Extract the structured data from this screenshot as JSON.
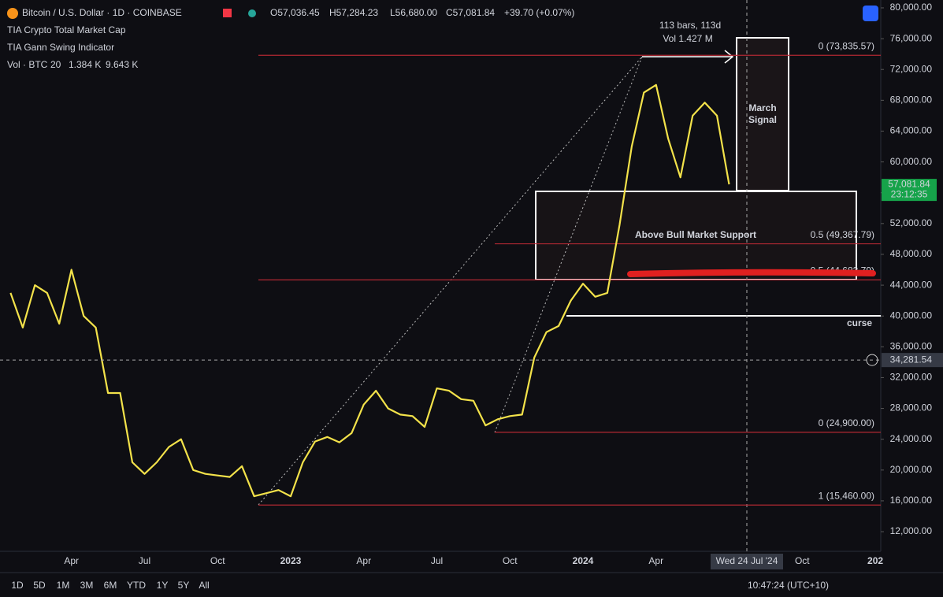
{
  "chart_data": {
    "type": "line",
    "title": "Bitcoin / U.S. Dollar · 1D · COINBASE",
    "ohlc": [
      "O57,036.45",
      "H57,284.23",
      "L56,680.00",
      "C57,081.84",
      "+39.70 (+0.07%)"
    ],
    "indicators": [
      "TIA Crypto Total Market Cap",
      "TIA Gann Swing Indicator"
    ],
    "volume_legend": [
      "Vol · BTC",
      "20",
      "1.384 K",
      "9.643 K"
    ],
    "categories": [
      null,
      null,
      null,
      null,
      null,
      "Apr",
      null,
      null,
      null,
      null,
      null,
      "Jul",
      null,
      null,
      null,
      null,
      null,
      "Oct",
      null,
      null,
      null,
      null,
      null,
      "2023",
      null,
      null,
      null,
      null,
      null,
      "Apr",
      null,
      null,
      null,
      null,
      null,
      "Jul",
      null,
      null,
      null,
      null,
      null,
      "Oct",
      null,
      null,
      null,
      null,
      null,
      "2024",
      null,
      null,
      null,
      null,
      null,
      "Apr",
      null,
      null,
      null,
      null,
      null,
      null,
      null,
      null,
      null,
      null,
      null,
      "Oct",
      null,
      null,
      null,
      null,
      null,
      "202"
    ],
    "values": [
      43000,
      38500,
      44000,
      43000,
      39000,
      46000,
      40000,
      38500,
      30000,
      30000,
      21000,
      19500,
      21000,
      23000,
      24000,
      20000,
      19500,
      19300,
      19100,
      20500,
      16600,
      17000,
      17400,
      16600,
      21000,
      23700,
      24300,
      23600,
      24800,
      28500,
      30300,
      28000,
      27200,
      27000,
      25600,
      30600,
      30300,
      29200,
      29000,
      25800,
      26600,
      27000,
      27200,
      34600,
      37900,
      38700,
      42000,
      44200,
      42500,
      43000,
      51800,
      62000,
      69000,
      70000,
      63000,
      58000,
      66000,
      67700,
      66000,
      57081.84,
      null,
      null,
      null,
      null,
      null,
      null,
      null,
      null,
      null,
      null,
      null,
      null
    ],
    "color": "#f3e24a",
    "ylim": [
      9450,
      81020
    ],
    "yticks": [
      {
        "value": 12000,
        "label": "12,000.00"
      },
      {
        "value": 16000,
        "label": "16,000.00"
      },
      {
        "value": 20000,
        "label": "20,000.00"
      },
      {
        "value": 24000,
        "label": "24,000.00"
      },
      {
        "value": 28000,
        "label": "28,000.00"
      },
      {
        "value": 32000,
        "label": "32,000.00"
      },
      {
        "value": 36000,
        "label": "36,000.00"
      },
      {
        "value": 40000,
        "label": "40,000.00"
      },
      {
        "value": 44000,
        "label": "44,000.00"
      },
      {
        "value": 48000,
        "label": "48,000.00"
      },
      {
        "value": 52000,
        "label": "52,000.00"
      },
      {
        "value": 56000,
        "label": "56,000.00"
      },
      {
        "value": 60000,
        "label": "60,000.00"
      },
      {
        "value": 64000,
        "label": "64,000.00"
      },
      {
        "value": 68000,
        "label": "68,000.00"
      },
      {
        "value": 72000,
        "label": "72,000.00"
      },
      {
        "value": 76000,
        "label": "76,000.00"
      },
      {
        "value": 80000,
        "label": "80,000.00"
      }
    ],
    "levels": [
      {
        "value": 73835.57,
        "label": "0 (73,835.57)"
      },
      {
        "value": 49367.79,
        "label": "0.5 (49,367.79)"
      },
      {
        "value": 44683.79,
        "label": "0.5 (44,683.79)"
      },
      {
        "value": 24900,
        "label": "0 (24,900.00)"
      },
      {
        "value": 15460,
        "label": "1 (15,460.00)"
      }
    ],
    "annotations": [
      "113 bars, 113d",
      "Vol 1.427 M",
      "March",
      "Signal",
      "Above Bull Market Support",
      "curse"
    ],
    "last_price": {
      "value": 57081.84,
      "label": "57,081.84",
      "countdown": "23:12:35"
    },
    "crosshair": {
      "value": 34281.54,
      "label": "34,281.54",
      "date": "Wed 24 Jul '24"
    },
    "ranges": [
      "1D",
      "5D",
      "1M",
      "3M",
      "6M",
      "YTD",
      "1Y",
      "5Y",
      "All"
    ],
    "clock": "10:47:24 (UTC+10)"
  }
}
